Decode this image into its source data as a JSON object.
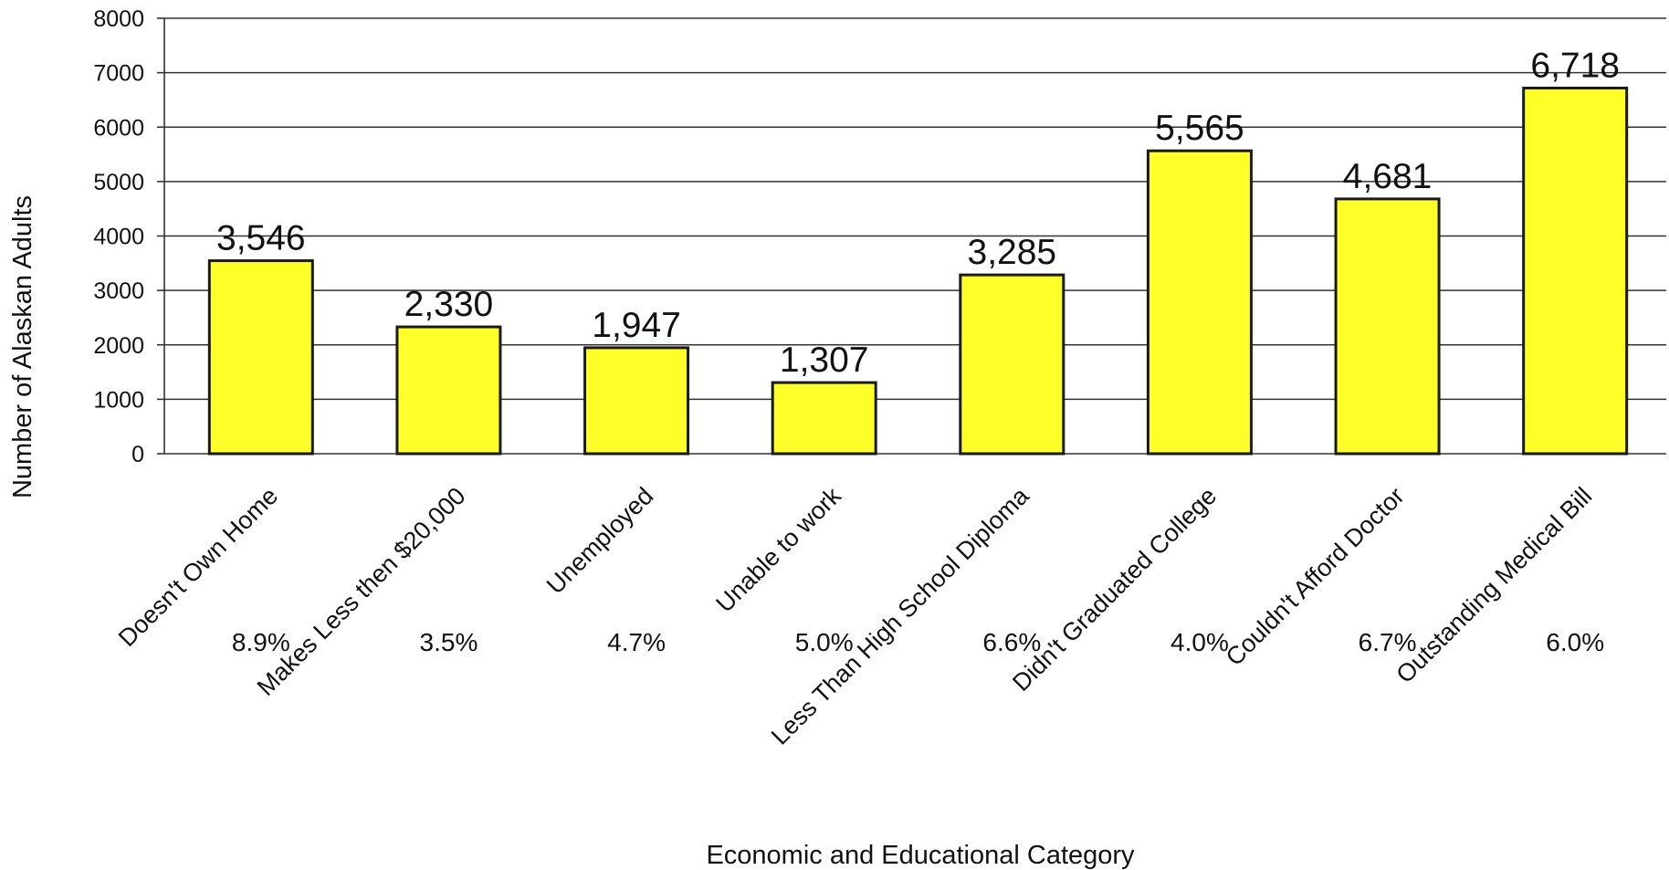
{
  "chart_data": {
    "type": "bar",
    "title": "",
    "xlabel": "Economic and Educational Category",
    "ylabel": "Number of Alaskan Adults",
    "ylim": [
      0,
      8000
    ],
    "yticks": [
      "0",
      "1000",
      "2000",
      "3000",
      "4000",
      "5000",
      "6000",
      "7000",
      "8000"
    ],
    "grid": true,
    "legend": "none",
    "bar_color": "#FFFF2A",
    "categories": [
      "Doesn't Own Home",
      "Makes Less then $20,000",
      "Unemployed",
      "Unable to work",
      "Less Than High School Diploma",
      "Didn't Graduated College",
      "Couldn't Afford Doctor",
      "Outstanding Medical Bill"
    ],
    "values": [
      3546,
      2330,
      1947,
      1307,
      3285,
      5565,
      4681,
      6718
    ],
    "data_labels": [
      "3,546",
      "2,330",
      "1,947",
      "1,307",
      "3,285",
      "5,565",
      "4,681",
      "6,718"
    ],
    "percent_labels": [
      "8.9%",
      "3.5%",
      "4.7%",
      "5.0%",
      "6.6%",
      "4.0%",
      "6.7%",
      "6.0%"
    ]
  }
}
